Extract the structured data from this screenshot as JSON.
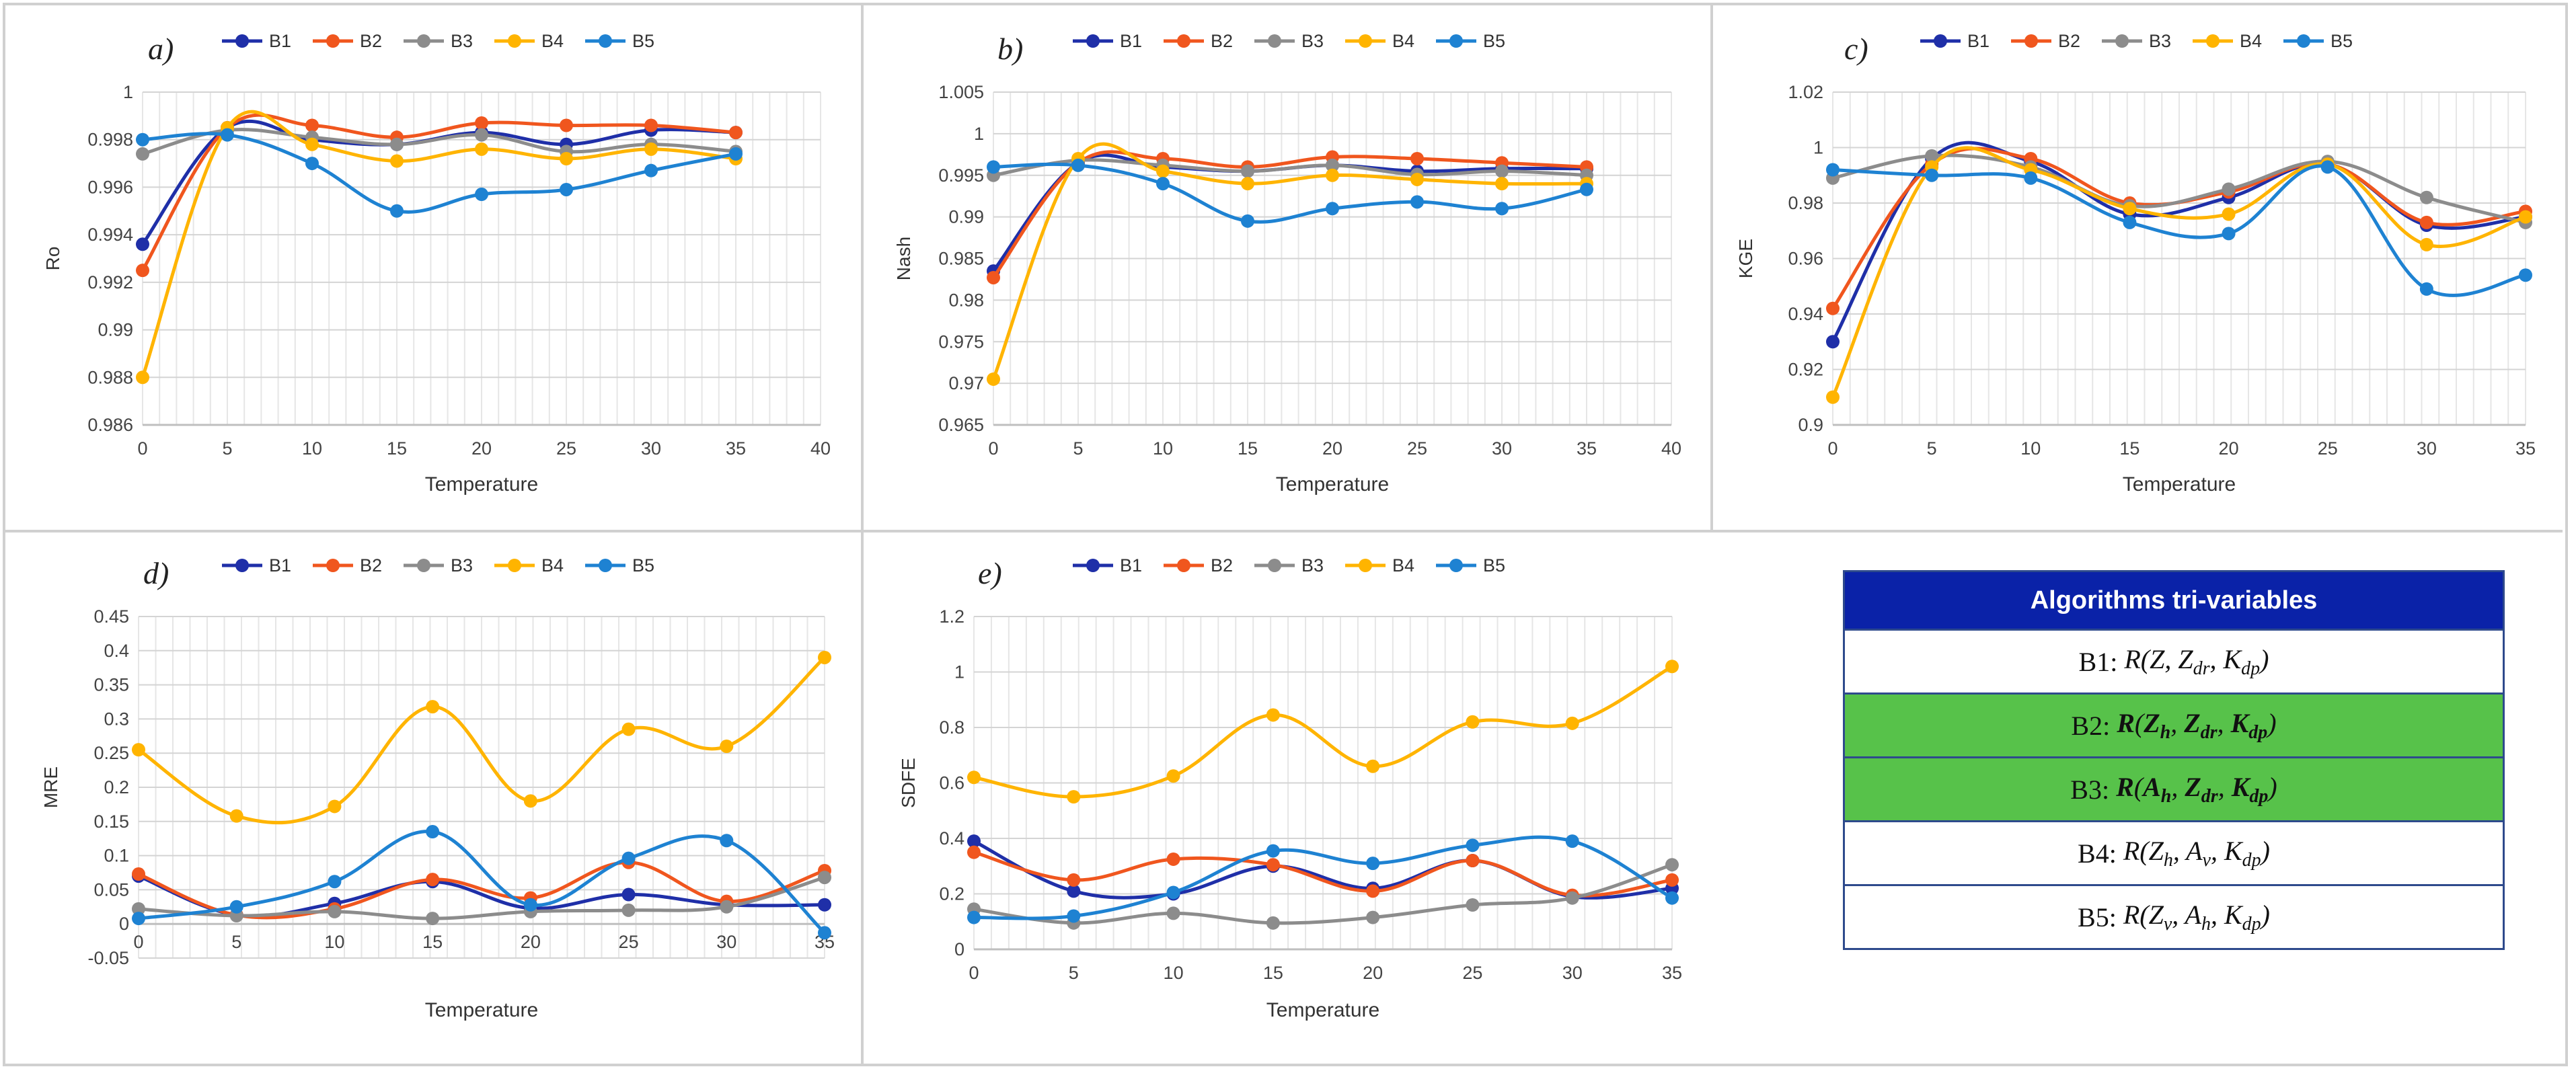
{
  "series_colors": {
    "B1": "#1f2fa8",
    "B2": "#f0561e",
    "B3": "#8c8c8c",
    "B4": "#ffb400",
    "B5": "#1e82d2"
  },
  "legend_names": [
    "B1",
    "B2",
    "B3",
    "B4",
    "B5"
  ],
  "chart_data": [
    {
      "id": "a",
      "panel_label": "a)",
      "type": "line",
      "ylabel": "Ro",
      "xlabel": "Temperature",
      "xlim": [
        0,
        40
      ],
      "xticks": [
        0,
        5,
        10,
        15,
        20,
        25,
        30,
        35,
        40
      ],
      "ylim": [
        0.986,
        1.0
      ],
      "yticks": [
        0.986,
        0.988,
        0.99,
        0.992,
        0.994,
        0.996,
        0.998,
        1
      ],
      "ytick_labels": [
        "0.986",
        "0.988",
        "0.99",
        "0.992",
        "0.994",
        "0.996",
        "0.998",
        "1"
      ],
      "x": [
        0,
        5,
        10,
        15,
        20,
        25,
        30,
        35
      ],
      "series": [
        {
          "name": "B1",
          "values": [
            0.9936,
            0.9985,
            0.998,
            0.9978,
            0.9983,
            0.9978,
            0.9984,
            0.9983
          ]
        },
        {
          "name": "B2",
          "values": [
            0.9925,
            0.9985,
            0.9986,
            0.9981,
            0.9987,
            0.9986,
            0.9986,
            0.9983
          ]
        },
        {
          "name": "B3",
          "values": [
            0.9974,
            0.9984,
            0.9981,
            0.9978,
            0.9982,
            0.9975,
            0.9978,
            0.9975
          ]
        },
        {
          "name": "B4",
          "values": [
            0.988,
            0.9985,
            0.9978,
            0.9971,
            0.9976,
            0.9972,
            0.9976,
            0.9972
          ]
        },
        {
          "name": "B5",
          "values": [
            0.998,
            0.9982,
            0.997,
            0.995,
            0.9957,
            0.9959,
            0.9967,
            0.9974
          ]
        }
      ]
    },
    {
      "id": "b",
      "panel_label": "b)",
      "type": "line",
      "ylabel": "Nash",
      "xlabel": "Temperature",
      "xlim": [
        0,
        40
      ],
      "xticks": [
        0,
        5,
        10,
        15,
        20,
        25,
        30,
        35,
        40
      ],
      "ylim": [
        0.965,
        1.005
      ],
      "yticks": [
        0.965,
        0.97,
        0.975,
        0.98,
        0.985,
        0.99,
        0.995,
        1,
        1.005
      ],
      "ytick_labels": [
        "0.965",
        "0.97",
        "0.975",
        "0.98",
        "0.985",
        "0.99",
        "0.995",
        "1",
        "1.005"
      ],
      "x": [
        0,
        5,
        10,
        15,
        20,
        25,
        30,
        35
      ],
      "series": [
        {
          "name": "B1",
          "values": [
            0.9835,
            0.9965,
            0.996,
            0.9955,
            0.9962,
            0.9955,
            0.9958,
            0.9958
          ]
        },
        {
          "name": "B2",
          "values": [
            0.9827,
            0.9965,
            0.997,
            0.996,
            0.9972,
            0.997,
            0.9965,
            0.996
          ]
        },
        {
          "name": "B3",
          "values": [
            0.995,
            0.9968,
            0.9962,
            0.9955,
            0.9962,
            0.9951,
            0.9955,
            0.995
          ]
        },
        {
          "name": "B4",
          "values": [
            0.9705,
            0.997,
            0.9955,
            0.994,
            0.995,
            0.9945,
            0.994,
            0.994
          ]
        },
        {
          "name": "B5",
          "values": [
            0.996,
            0.9962,
            0.994,
            0.9895,
            0.991,
            0.9918,
            0.991,
            0.9933
          ]
        }
      ]
    },
    {
      "id": "c",
      "panel_label": "c)",
      "type": "line",
      "ylabel": "KGE",
      "xlabel": "Temperature",
      "xlim": [
        0,
        35
      ],
      "xticks": [
        0,
        5,
        10,
        15,
        20,
        25,
        30,
        35
      ],
      "ylim": [
        0.9,
        1.02
      ],
      "yticks": [
        0.9,
        0.92,
        0.94,
        0.96,
        0.98,
        1,
        1.02
      ],
      "ytick_labels": [
        "0.9",
        "0.92",
        "0.94",
        "0.96",
        "0.98",
        "1",
        "1.02"
      ],
      "x": [
        0,
        5,
        10,
        15,
        20,
        25,
        30,
        35
      ],
      "series": [
        {
          "name": "B1",
          "values": [
            0.93,
            0.996,
            0.995,
            0.976,
            0.982,
            0.994,
            0.972,
            0.975
          ]
        },
        {
          "name": "B2",
          "values": [
            0.942,
            0.994,
            0.996,
            0.98,
            0.984,
            0.994,
            0.973,
            0.977
          ]
        },
        {
          "name": "B3",
          "values": [
            0.989,
            0.997,
            0.993,
            0.979,
            0.985,
            0.995,
            0.982,
            0.973
          ]
        },
        {
          "name": "B4",
          "values": [
            0.91,
            0.993,
            0.992,
            0.978,
            0.976,
            0.994,
            0.965,
            0.975
          ]
        },
        {
          "name": "B5",
          "values": [
            0.992,
            0.99,
            0.989,
            0.973,
            0.969,
            0.993,
            0.949,
            0.954
          ]
        }
      ]
    },
    {
      "id": "d",
      "panel_label": "d)",
      "type": "line",
      "ylabel": "MRE",
      "xlabel": "Temperature",
      "xlim": [
        0,
        35
      ],
      "xticks": [
        0,
        5,
        10,
        15,
        20,
        25,
        30,
        35
      ],
      "ylim": [
        -0.05,
        0.45
      ],
      "yticks": [
        -0.05,
        0,
        0.05,
        0.1,
        0.15,
        0.2,
        0.25,
        0.3,
        0.35,
        0.4,
        0.45
      ],
      "ytick_labels": [
        "-0.05",
        "0",
        "0.05",
        "0.1",
        "0.15",
        "0.2",
        "0.25",
        "0.3",
        "0.35",
        "0.4",
        "0.45"
      ],
      "x": [
        0,
        5,
        10,
        15,
        20,
        25,
        30,
        35
      ],
      "series": [
        {
          "name": "B1",
          "values": [
            0.07,
            0.013,
            0.03,
            0.062,
            0.023,
            0.043,
            0.028,
            0.028
          ]
        },
        {
          "name": "B2",
          "values": [
            0.073,
            0.013,
            0.022,
            0.065,
            0.038,
            0.09,
            0.033,
            0.078
          ]
        },
        {
          "name": "B3",
          "values": [
            0.022,
            0.012,
            0.018,
            0.008,
            0.018,
            0.02,
            0.025,
            0.068
          ]
        },
        {
          "name": "B4",
          "values": [
            0.255,
            0.158,
            0.172,
            0.318,
            0.18,
            0.285,
            0.26,
            0.39
          ]
        },
        {
          "name": "B5",
          "values": [
            0.008,
            0.025,
            0.062,
            0.135,
            0.028,
            0.096,
            0.122,
            -0.013
          ]
        }
      ]
    },
    {
      "id": "e",
      "panel_label": "e)",
      "type": "line",
      "ylabel": "SDFE",
      "xlabel": "Temperature",
      "xlim": [
        0,
        35
      ],
      "xticks": [
        0,
        5,
        10,
        15,
        20,
        25,
        30,
        35
      ],
      "ylim": [
        0,
        1.2
      ],
      "yticks": [
        0,
        0.2,
        0.4,
        0.6,
        0.8,
        1,
        1.2
      ],
      "ytick_labels": [
        "0",
        "0.2",
        "0.4",
        "0.6",
        "0.8",
        "1",
        "1.2"
      ],
      "x": [
        0,
        5,
        10,
        15,
        20,
        25,
        30,
        35
      ],
      "series": [
        {
          "name": "B1",
          "values": [
            0.39,
            0.21,
            0.2,
            0.3,
            0.22,
            0.32,
            0.19,
            0.22
          ]
        },
        {
          "name": "B2",
          "values": [
            0.35,
            0.25,
            0.325,
            0.305,
            0.21,
            0.32,
            0.195,
            0.25
          ]
        },
        {
          "name": "B3",
          "values": [
            0.145,
            0.095,
            0.13,
            0.095,
            0.115,
            0.16,
            0.185,
            0.305
          ]
        },
        {
          "name": "B4",
          "values": [
            0.62,
            0.55,
            0.625,
            0.845,
            0.66,
            0.82,
            0.815,
            1.02
          ]
        },
        {
          "name": "B5",
          "values": [
            0.115,
            0.12,
            0.205,
            0.355,
            0.31,
            0.375,
            0.39,
            0.185
          ]
        }
      ]
    }
  ],
  "table": {
    "title": "Algorithms tri-variables",
    "rows": [
      {
        "label": "B1",
        "fn": "R",
        "args": [
          {
            "b": "Z",
            "s": ""
          },
          {
            "b": "Z",
            "s": "dr"
          },
          {
            "b": "K",
            "s": "dp"
          }
        ],
        "style": "white"
      },
      {
        "label": "B2",
        "fn": "R",
        "args": [
          {
            "b": "Z",
            "s": "h"
          },
          {
            "b": "Z",
            "s": "dr"
          },
          {
            "b": "K",
            "s": "dp"
          }
        ],
        "style": "green"
      },
      {
        "label": "B3",
        "fn": "R",
        "args": [
          {
            "b": "A",
            "s": "h"
          },
          {
            "b": "Z",
            "s": "dr"
          },
          {
            "b": "K",
            "s": "dp"
          }
        ],
        "style": "green"
      },
      {
        "label": "B4",
        "fn": "R",
        "args": [
          {
            "b": "Z",
            "s": "h"
          },
          {
            "b": "A",
            "s": "v"
          },
          {
            "b": "K",
            "s": "dp"
          }
        ],
        "style": "white"
      },
      {
        "label": "B5",
        "fn": "R",
        "args": [
          {
            "b": "Z",
            "s": "v"
          },
          {
            "b": "A",
            "s": "h"
          },
          {
            "b": "K",
            "s": "dp"
          }
        ],
        "style": "white"
      }
    ]
  }
}
